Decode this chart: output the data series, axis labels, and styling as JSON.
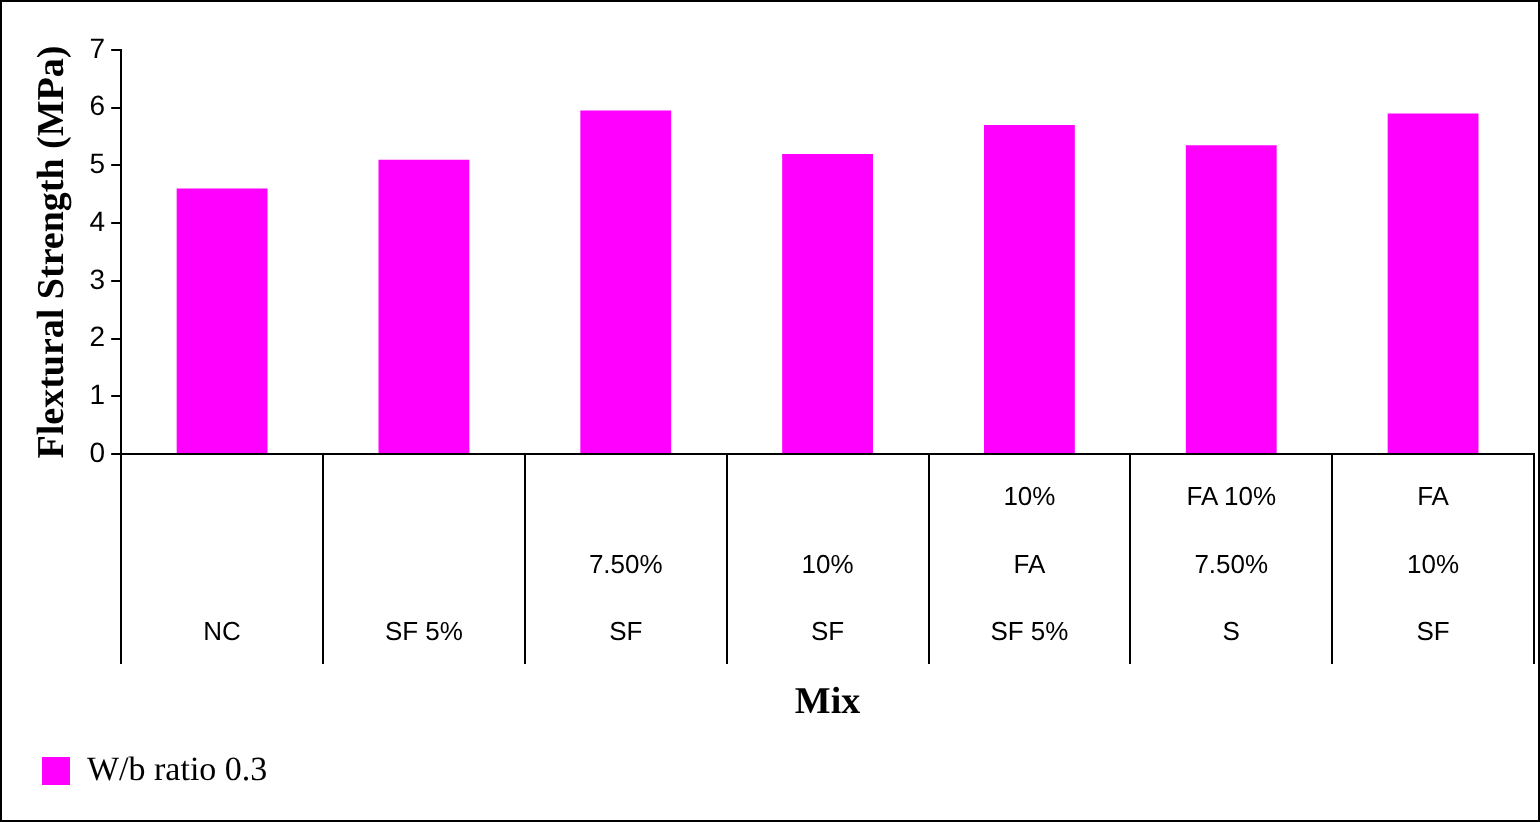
{
  "chart_data": {
    "type": "bar",
    "xlabel": "Mix",
    "ylabel": "Flextural Strength (MPa)",
    "categories": [
      "NC",
      "SF 5%",
      "7.50%\nSF",
      "10%\nSF",
      "10%\nFA\nSF 5%",
      "FA 10%\n7.50%\nS",
      "FA\n10%\nSF"
    ],
    "series": [
      {
        "name": "W/b ratio 0.3",
        "color": "#ff00ff",
        "values": [
          4.6,
          5.1,
          5.95,
          5.2,
          5.7,
          5.35,
          5.9
        ]
      }
    ],
    "ylim": [
      0,
      7
    ],
    "yticks": [
      0,
      1,
      2,
      3,
      4,
      5,
      6,
      7
    ],
    "grid": false,
    "legend": "bottom left"
  }
}
